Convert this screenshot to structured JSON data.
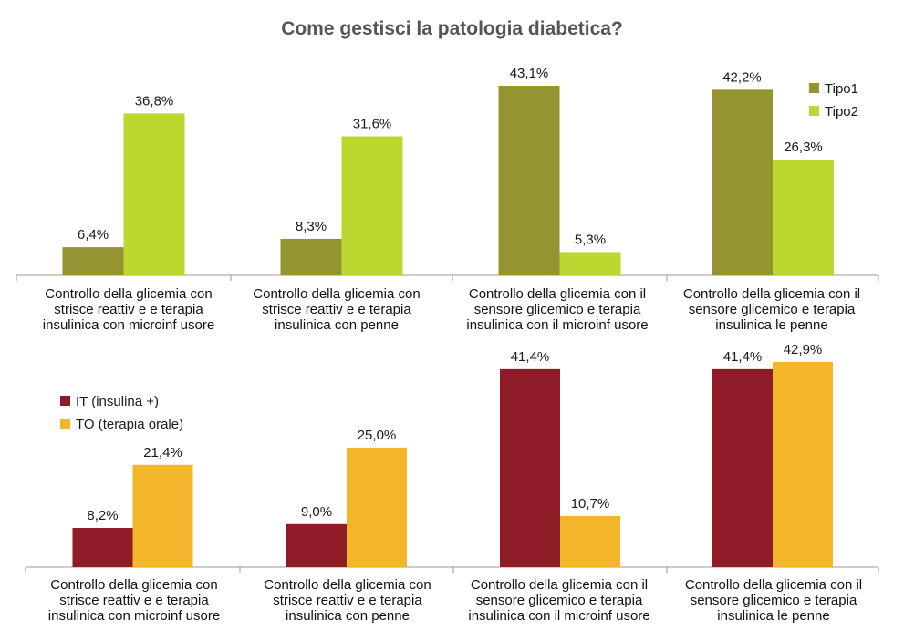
{
  "chart_data": [
    {
      "type": "bar",
      "title": "Come gestisci la patologia diabetica?",
      "categories": [
        "Controllo della glicemia con strisce reattiv e e terapia insulinica con microinf usore",
        "Controllo della glicemia con strisce reattiv e e terapia insulinica con penne",
        "Controllo della glicemia con il sensore glicemico e terapia insulinica con il microinf usore",
        "Controllo della glicemia con il sensore glicemico e terapia insulinica le penne"
      ],
      "series": [
        {
          "name": "Tipo1",
          "values": [
            6.4,
            8.3,
            43.1,
            42.2
          ],
          "labels": [
            "6,4%",
            "8,3%",
            "43,1%",
            "42,2%"
          ],
          "color": "#949530"
        },
        {
          "name": "Tipo2",
          "values": [
            36.8,
            31.6,
            5.3,
            26.3
          ],
          "labels": [
            "36,8%",
            "31,6%",
            "5,3%",
            "26,3%"
          ],
          "color": "#bdd731"
        }
      ],
      "ylim": [
        0,
        43.1
      ],
      "legend": "top-right",
      "grid": false
    },
    {
      "type": "bar",
      "categories": [
        "Controllo della glicemia con strisce reattiv e e terapia insulinica con microinf usore",
        "Controllo della glicemia con strisce reattiv e e terapia insulinica con penne",
        "Controllo della glicemia con il sensore glicemico e terapia insulinica con il microinf usore",
        "Controllo della glicemia con il sensore glicemico e terapia insulinica le penne"
      ],
      "series": [
        {
          "name": "IT (insulina +)",
          "values": [
            8.2,
            9.0,
            41.4,
            41.4
          ],
          "labels": [
            "8,2%",
            "9,0%",
            "41,4%",
            "41,4%"
          ],
          "color": "#8e1b26"
        },
        {
          "name": "TO (terapia orale)",
          "values": [
            21.4,
            25.0,
            10.7,
            42.9
          ],
          "labels": [
            "21,4%",
            "25,0%",
            "10,7%",
            "42,9%"
          ],
          "color": "#f3b62b"
        }
      ],
      "ylim": [
        0,
        42.9
      ],
      "legend": "top-left",
      "grid": false
    }
  ]
}
